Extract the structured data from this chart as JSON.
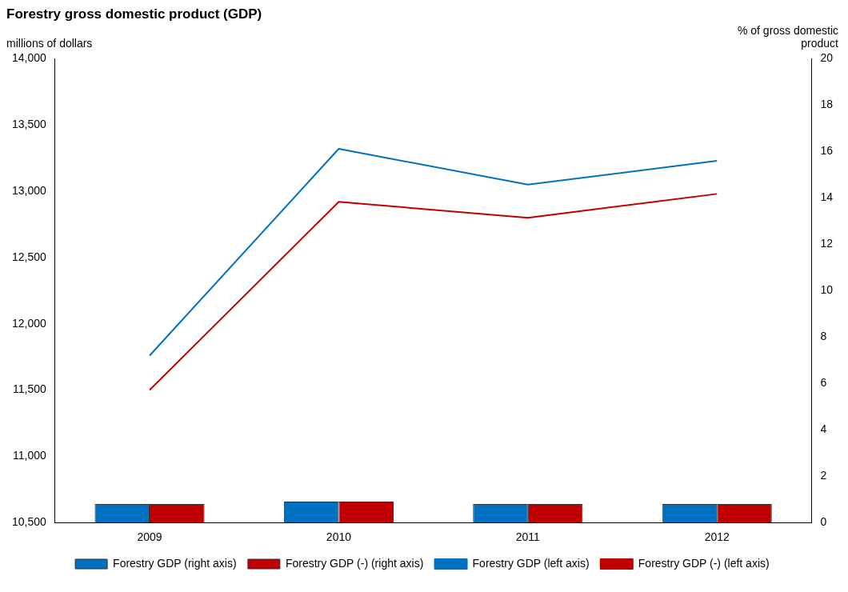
{
  "chart_data": {
    "type": "bar",
    "title": "Forestry gross domestic product (GDP)",
    "ylabel": "millions of dollars",
    "y2label": "% of gross domestic product",
    "categories": [
      "2009",
      "2010",
      "2011",
      "2012"
    ],
    "series": [
      {
        "name": "Forestry GDP (right axis)",
        "axis": "y2",
        "color": "#0070c0",
        "values": [
          0.8,
          0.9,
          0.8,
          0.8
        ]
      },
      {
        "name": "Forestry GDP (-) (right axis)",
        "axis": "y2",
        "color": "#c00000",
        "values": [
          0.8,
          0.9,
          0.8,
          0.8
        ]
      },
      {
        "name": "Forestry GDP (left axis)",
        "type": "line",
        "color": "#0070c0",
        "values": [
          11760,
          13320,
          13050,
          13230
        ]
      },
      {
        "name": "Forestry GDP (-) (left axis)",
        "type": "line",
        "color": "#c00000",
        "values": [
          11500,
          12920,
          12800,
          12980
        ]
      }
    ],
    "ylim": [
      10500,
      14000
    ],
    "yticks": [
      {
        "value": 10500,
        "label": "10,500"
      },
      {
        "value": 11000,
        "label": "11,000"
      },
      {
        "value": 11500,
        "label": "11,500"
      },
      {
        "value": 12000,
        "label": "12,000"
      },
      {
        "value": 12500,
        "label": "12,500"
      },
      {
        "value": 13000,
        "label": "13,000"
      },
      {
        "value": 13500,
        "label": "13,500"
      },
      {
        "value": 14000,
        "label": "14,000"
      }
    ],
    "y2lim": [
      0,
      20
    ],
    "y2ticks": [
      0,
      2,
      4,
      6,
      8,
      10,
      12,
      14,
      16,
      18,
      20
    ],
    "grid": false,
    "legend": "bottom",
    "marker": "none"
  }
}
